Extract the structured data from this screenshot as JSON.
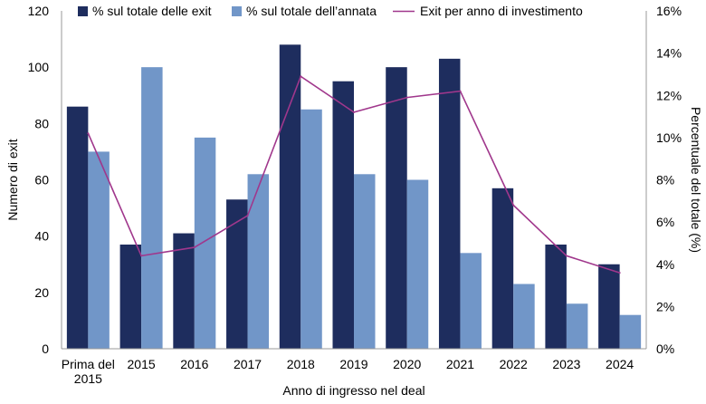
{
  "chart_data": {
    "type": "bar",
    "xlabel": "Anno di ingresso nel deal",
    "ylabel_left": "Numero di exit",
    "ylabel_right": "Percentuale del totale (%)",
    "ylim_left": [
      0,
      120
    ],
    "ylim_right": [
      0,
      16
    ],
    "yticks_left": [
      "0",
      "20",
      "40",
      "60",
      "80",
      "100",
      "120"
    ],
    "yticks_right": [
      "0%",
      "2%",
      "4%",
      "6%",
      "8%",
      "10%",
      "12%",
      "14%",
      "16%"
    ],
    "categories": [
      [
        "Prima del",
        "2015"
      ],
      [
        "2015"
      ],
      [
        "2016"
      ],
      [
        "2017"
      ],
      [
        "2018"
      ],
      [
        "2019"
      ],
      [
        "2020"
      ],
      [
        "2021"
      ],
      [
        "2022"
      ],
      [
        "2023"
      ],
      [
        "2024"
      ]
    ],
    "legend_position": "top",
    "series": [
      {
        "name": "% sul totale delle exit",
        "type": "bar",
        "axis": "left",
        "color": "#1e2d5e",
        "values": [
          86,
          37,
          41,
          53,
          108,
          95,
          100,
          103,
          57,
          37,
          30
        ]
      },
      {
        "name": "% sul totale dell’annata",
        "type": "bar",
        "axis": "left",
        "color": "#7196c8",
        "values": [
          70,
          100,
          75,
          62,
          85,
          62,
          60,
          34,
          23,
          16,
          12
        ]
      },
      {
        "name": "Exit per anno di investimento",
        "type": "line",
        "axis": "right",
        "color": "#a0378c",
        "values": [
          10.2,
          4.4,
          4.8,
          6.3,
          12.9,
          11.2,
          11.9,
          12.2,
          6.8,
          4.4,
          3.6
        ]
      }
    ]
  }
}
